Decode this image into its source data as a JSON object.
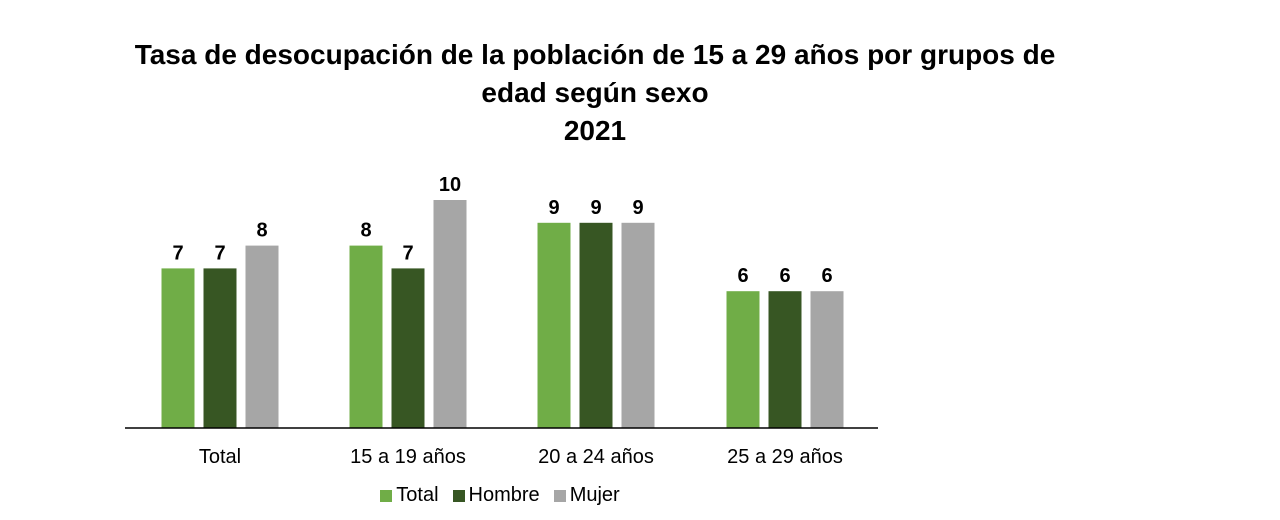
{
  "chart_data": {
    "type": "bar",
    "title": {
      "line1": "Tasa de desocupación de la población de 15 a 29 años por grupos de",
      "line2": "edad según sexo",
      "line3": "2021"
    },
    "categories": [
      "Total",
      "15 a 19 años",
      "20 a 24 años",
      "25 a 29 años"
    ],
    "series": [
      {
        "name": "Total",
        "values": [
          7,
          8,
          9,
          6
        ],
        "color": "#70ad47"
      },
      {
        "name": "Hombre",
        "values": [
          7,
          7,
          9,
          6
        ],
        "color": "#375623"
      },
      {
        "name": "Mujer",
        "values": [
          8,
          10,
          9,
          6
        ],
        "color": "#a6a6a6"
      }
    ],
    "ylim": [
      0,
      10
    ],
    "grid": false,
    "legend_position": "bottom",
    "data_labels": true
  }
}
